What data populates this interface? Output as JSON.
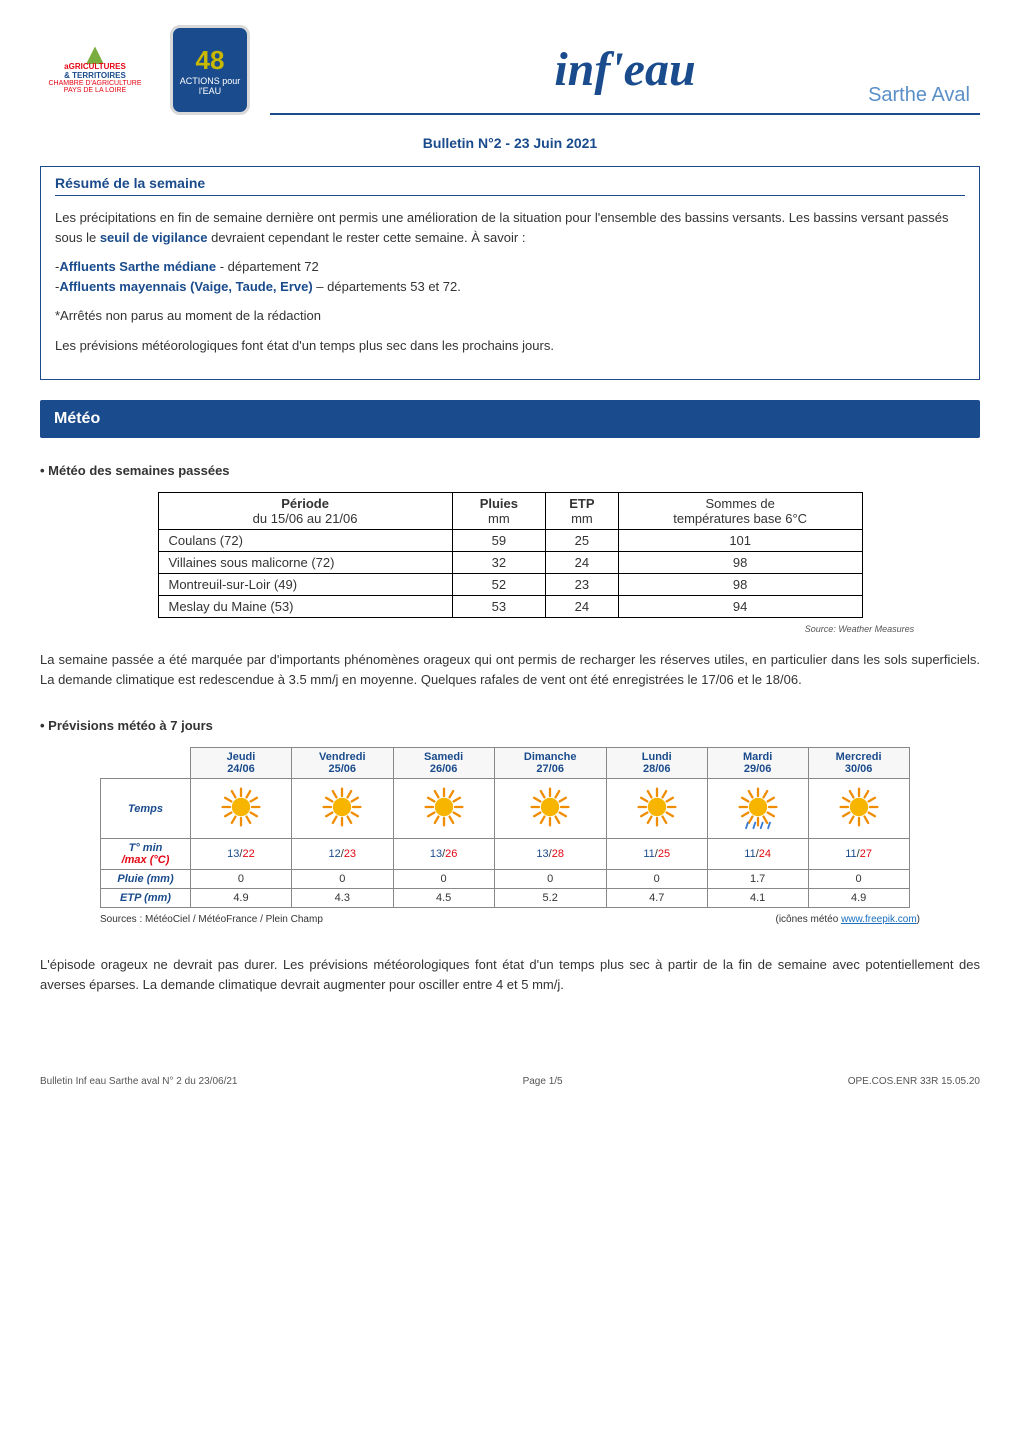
{
  "header": {
    "logo_ca": {
      "line1": "aGRICULTURES",
      "line2": "& TERRITOIRES",
      "line3": "CHAMBRE D'AGRICULTURE",
      "line4": "PAYS DE LA LOIRE"
    },
    "logo_48": {
      "number": "48",
      "line1": "ACTIONS pour",
      "line2": "l'EAU"
    },
    "banner_title": "inf'eau",
    "region": "Sarthe Aval"
  },
  "bulletin_title": "Bulletin N°2 - 23 Juin 2021",
  "resume": {
    "heading": "Résumé de la semaine",
    "p1_a": "Les précipitations en fin de semaine dernière ont permis une amélioration de la situation pour l'ensemble des bassins versants. Les bassins versant passés sous le ",
    "p1_seuil": "seuil de vigilance",
    "p1_b": " devraient cependant le rester cette semaine. À savoir :",
    "bullet1_prefix": "-",
    "bullet1_name": "Affluents Sarthe médiane",
    "bullet1_rest": " - département 72",
    "bullet2_prefix": "-",
    "bullet2_name": "Affluents mayennais (Vaige, Taude, Erve)",
    "bullet2_rest": " – départements 53 et 72.",
    "note": "*Arrêtés non parus au moment de la rédaction",
    "p_last": "Les prévisions météorologiques font état d'un temps plus sec dans les prochains jours."
  },
  "meteo_section_title": "Météo",
  "past": {
    "heading": "• Météo des semaines passées",
    "header_period": "Période",
    "header_period_sub": "du 15/06 au 21/06",
    "header_rain": "Pluies",
    "header_rain_unit": "mm",
    "header_etp": "ETP",
    "header_etp_unit": "mm",
    "header_temp": "Sommes de",
    "header_temp_sub": "températures base 6°C",
    "rows": [
      {
        "station": "Coulans (72)",
        "rain": "59",
        "etp": "25",
        "temp": "101"
      },
      {
        "station": "Villaines sous malicorne (72)",
        "rain": "32",
        "etp": "24",
        "temp": "98"
      },
      {
        "station": "Montreuil-sur-Loir (49)",
        "rain": "52",
        "etp": "23",
        "temp": "98"
      },
      {
        "station": "Meslay du Maine (53)",
        "rain": "53",
        "etp": "24",
        "temp": "94"
      }
    ],
    "source": "Source: Weather Measures",
    "analysis": "La semaine passée a été marquée par d'importants phénomènes orageux qui ont permis de recharger les réserves utiles, en particulier dans les sols superficiels. La demande climatique est redescendue à  3.5 mm/j en moyenne. Quelques rafales de vent ont été enregistrées le 17/06 et le 18/06."
  },
  "forecast": {
    "heading": "• Prévisions météo à 7 jours",
    "days": [
      {
        "name": "Jeudi",
        "date": "24/06",
        "icon": "sun",
        "tmin": "13",
        "tmax": "22",
        "rain": "0",
        "etp": "4.9"
      },
      {
        "name": "Vendredi",
        "date": "25/06",
        "icon": "sun",
        "tmin": "12",
        "tmax": "23",
        "rain": "0",
        "etp": "4.3"
      },
      {
        "name": "Samedi",
        "date": "26/06",
        "icon": "sun",
        "tmin": "13",
        "tmax": "26",
        "rain": "0",
        "etp": "4.5"
      },
      {
        "name": "Dimanche",
        "date": "27/06",
        "icon": "sun",
        "tmin": "13",
        "tmax": "28",
        "rain": "0",
        "etp": "5.2"
      },
      {
        "name": "Lundi",
        "date": "28/06",
        "icon": "sun",
        "tmin": "11",
        "tmax": "25",
        "rain": "0",
        "etp": "4.7"
      },
      {
        "name": "Mardi",
        "date": "29/06",
        "icon": "sun-rain",
        "tmin": "11",
        "tmax": "24",
        "rain": "1.7",
        "etp": "4.1"
      },
      {
        "name": "Mercredi",
        "date": "30/06",
        "icon": "sun",
        "tmin": "11",
        "tmax": "27",
        "rain": "0",
        "etp": "4.9"
      }
    ],
    "row_temps": "Temps",
    "row_tminmax_a": "T° min",
    "row_tminmax_b": "/max (°C)",
    "row_rain": "Pluie (mm)",
    "row_etp": "ETP (mm)",
    "credits_left": "Sources : MétéoCiel / MétéoFrance / Plein Champ",
    "credits_right_a": "(icônes météo ",
    "credits_right_link": "www.freepik.com",
    "credits_right_b": ")",
    "analysis": "L'épisode orageux ne devrait pas durer. Les prévisions météorologiques font état d'un temps plus sec à partir de la fin de semaine avec potentiellement des averses éparses. La demande climatique devrait augmenter pour osciller entre 4 et 5 mm/j."
  },
  "footer": {
    "left": "Bulletin Inf eau Sarthe aval N° 2 du 23/06/21",
    "center": "Page 1/5",
    "right": "OPE.COS.ENR 33R 15.05.20"
  },
  "colors": {
    "primary_blue": "#1a4b8c",
    "light_blue": "#5a8fc7",
    "red": "#e30613",
    "green": "#7aad3f",
    "sun_yellow": "#f7b500",
    "sun_orange": "#f08c00",
    "rain_blue": "#3a7bd5"
  }
}
